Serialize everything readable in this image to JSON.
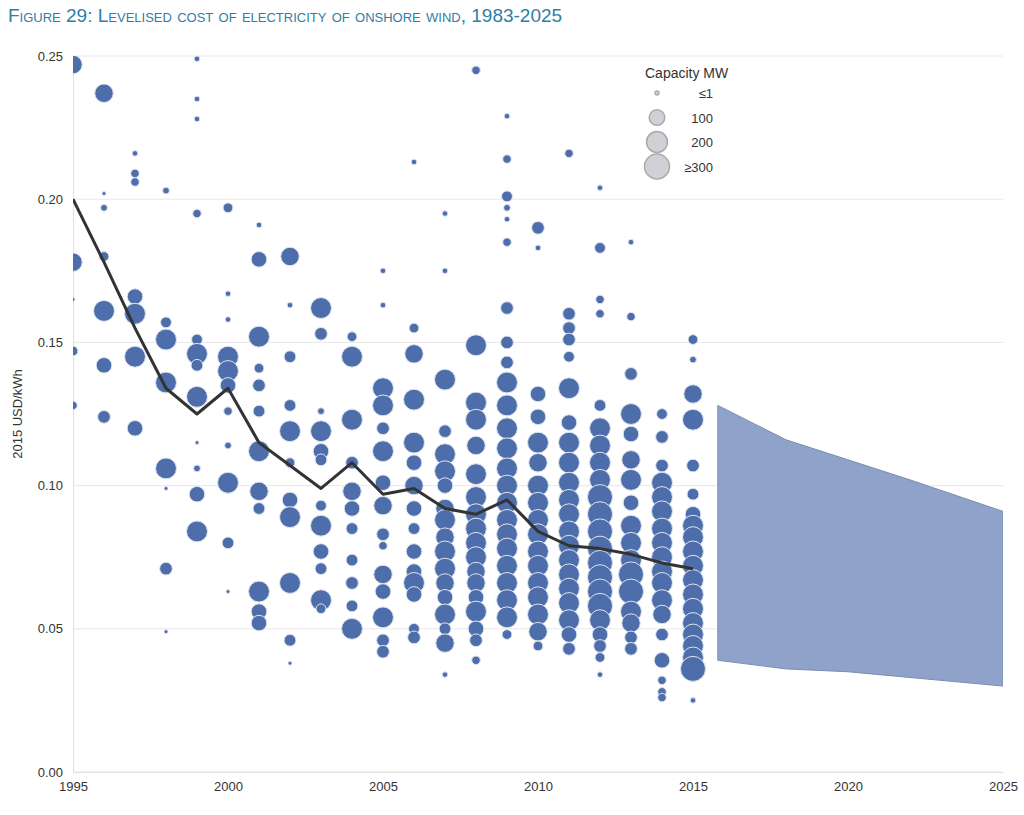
{
  "chart_data": {
    "type": "scatter",
    "title": "Figure 29: Levelised cost of electricity of onshore wind, 1983-2025",
    "y_label": "2015 USD/kWh",
    "xlim": [
      1995,
      2025
    ],
    "xticks": [
      1995,
      2000,
      2005,
      2010,
      2015,
      2020,
      2025
    ],
    "ylim": [
      0,
      0.25
    ],
    "yticks": [
      {
        "value": 0,
        "label": "0.00"
      },
      {
        "value": 0.05,
        "label": "0.05"
      },
      {
        "value": 0.1,
        "label": "0.10"
      },
      {
        "value": 0.15,
        "label": "0.15"
      },
      {
        "value": 0.2,
        "label": "0.20"
      },
      {
        "value": 0.25,
        "label": "0.25"
      }
    ],
    "grid": true,
    "legend": "top-right",
    "size_legend": {
      "title": "Capacity MW",
      "color": "#cfd1d6",
      "items": [
        {
          "value": 1,
          "label": "≤1"
        },
        {
          "value": 100,
          "label": "100"
        },
        {
          "value": 200,
          "label": "200"
        },
        {
          "value": 300,
          "label": "≥300"
        }
      ]
    },
    "series": [
      {
        "type": "scatter",
        "color": "#4e6eab",
        "marker": "circle",
        "x": [
          1995,
          1995,
          1995,
          1995,
          1995,
          1996,
          1996,
          1996,
          1996,
          1996,
          1996,
          1996,
          1997,
          1997,
          1997,
          1997,
          1997,
          1997,
          1997,
          1998,
          1998,
          1998,
          1998,
          1998,
          1998,
          1998,
          1998,
          1999,
          1999,
          1999,
          1999,
          1999,
          1999,
          1999,
          1999,
          1999,
          1999,
          1999,
          1999,
          2000,
          2000,
          2000,
          2000,
          2000,
          2000,
          2000,
          2000,
          2000,
          2000,
          2000,
          2001,
          2001,
          2001,
          2001,
          2001,
          2001,
          2001,
          2001,
          2001,
          2001,
          2001,
          2001,
          2002,
          2002,
          2002,
          2002,
          2002,
          2002,
          2002,
          2002,
          2002,
          2002,
          2002,
          2003,
          2003,
          2003,
          2003,
          2003,
          2003,
          2003,
          2003,
          2003,
          2003,
          2003,
          2003,
          2004,
          2004,
          2004,
          2004,
          2004,
          2004,
          2004,
          2004,
          2004,
          2004,
          2004,
          2005,
          2005,
          2005,
          2005,
          2005,
          2005,
          2005,
          2005,
          2005,
          2005,
          2005,
          2005,
          2005,
          2005,
          2005,
          2006,
          2006,
          2006,
          2006,
          2006,
          2006,
          2006,
          2006,
          2006,
          2006,
          2006,
          2006,
          2006,
          2006,
          2006,
          2007,
          2007,
          2007,
          2007,
          2007,
          2007,
          2007,
          2007,
          2007,
          2007,
          2007,
          2007,
          2007,
          2007,
          2007,
          2007,
          2007,
          2007,
          2008,
          2008,
          2008,
          2008,
          2008,
          2008,
          2008,
          2008,
          2008,
          2008,
          2008,
          2008,
          2008,
          2008,
          2008,
          2008,
          2008,
          2008,
          2009,
          2009,
          2009,
          2009,
          2009,
          2009,
          2009,
          2009,
          2009,
          2009,
          2009,
          2009,
          2009,
          2009,
          2009,
          2009,
          2009,
          2009,
          2009,
          2009,
          2009,
          2009,
          2009,
          2009,
          2010,
          2010,
          2010,
          2010,
          2010,
          2010,
          2010,
          2010,
          2010,
          2010,
          2010,
          2010,
          2010,
          2010,
          2010,
          2010,
          2010,
          2011,
          2011,
          2011,
          2011,
          2011,
          2011,
          2011,
          2011,
          2011,
          2011,
          2011,
          2011,
          2011,
          2011,
          2011,
          2011,
          2011,
          2011,
          2011,
          2011,
          2011,
          2012,
          2012,
          2012,
          2012,
          2012,
          2012,
          2012,
          2012,
          2012,
          2012,
          2012,
          2012,
          2012,
          2012,
          2012,
          2012,
          2012,
          2012,
          2012,
          2012,
          2012,
          2012,
          2013,
          2013,
          2013,
          2013,
          2013,
          2013,
          2013,
          2013,
          2013,
          2013,
          2013,
          2013,
          2013,
          2013,
          2013,
          2013,
          2013,
          2014,
          2014,
          2014,
          2014,
          2014,
          2014,
          2014,
          2014,
          2014,
          2014,
          2014,
          2014,
          2014,
          2014,
          2014,
          2014,
          2014,
          2014,
          2015,
          2015,
          2015,
          2015,
          2015,
          2015,
          2015,
          2015,
          2015,
          2015,
          2015,
          2015,
          2015,
          2015,
          2015,
          2015,
          2015,
          2015,
          2015,
          2015
        ],
        "values": [
          0.247,
          0.178,
          0.147,
          0.128,
          0.165,
          0.237,
          0.197,
          0.18,
          0.161,
          0.142,
          0.124,
          0.202,
          0.216,
          0.209,
          0.206,
          0.166,
          0.16,
          0.145,
          0.12,
          0.203,
          0.157,
          0.151,
          0.136,
          0.106,
          0.071,
          0.049,
          0.099,
          0.249,
          0.235,
          0.228,
          0.195,
          0.151,
          0.146,
          0.142,
          0.131,
          0.106,
          0.097,
          0.084,
          0.115,
          0.197,
          0.167,
          0.158,
          0.145,
          0.14,
          0.135,
          0.126,
          0.114,
          0.101,
          0.08,
          0.063,
          0.191,
          0.179,
          0.152,
          0.141,
          0.135,
          0.126,
          0.112,
          0.098,
          0.092,
          0.063,
          0.056,
          0.052,
          0.18,
          0.163,
          0.145,
          0.128,
          0.119,
          0.108,
          0.095,
          0.089,
          0.066,
          0.046,
          0.038,
          0.162,
          0.153,
          0.126,
          0.119,
          0.112,
          0.109,
          0.093,
          0.086,
          0.077,
          0.071,
          0.06,
          0.057,
          0.152,
          0.145,
          0.123,
          0.108,
          0.098,
          0.092,
          0.085,
          0.074,
          0.066,
          0.058,
          0.05,
          0.175,
          0.163,
          0.134,
          0.128,
          0.12,
          0.112,
          0.101,
          0.093,
          0.083,
          0.079,
          0.069,
          0.063,
          0.054,
          0.046,
          0.042,
          0.213,
          0.155,
          0.146,
          0.13,
          0.115,
          0.108,
          0.1,
          0.092,
          0.085,
          0.077,
          0.07,
          0.066,
          0.062,
          0.05,
          0.047,
          0.195,
          0.175,
          0.137,
          0.119,
          0.111,
          0.105,
          0.1,
          0.092,
          0.088,
          0.082,
          0.077,
          0.071,
          0.066,
          0.061,
          0.055,
          0.05,
          0.045,
          0.034,
          0.245,
          0.149,
          0.129,
          0.123,
          0.114,
          0.104,
          0.096,
          0.09,
          0.085,
          0.08,
          0.075,
          0.07,
          0.066,
          0.061,
          0.056,
          0.05,
          0.046,
          0.039,
          0.229,
          0.214,
          0.201,
          0.197,
          0.193,
          0.185,
          0.162,
          0.15,
          0.143,
          0.136,
          0.128,
          0.12,
          0.113,
          0.106,
          0.1,
          0.094,
          0.088,
          0.083,
          0.078,
          0.072,
          0.066,
          0.06,
          0.054,
          0.048,
          0.19,
          0.183,
          0.132,
          0.124,
          0.115,
          0.108,
          0.1,
          0.094,
          0.088,
          0.083,
          0.077,
          0.072,
          0.066,
          0.061,
          0.055,
          0.049,
          0.044,
          0.216,
          0.16,
          0.155,
          0.151,
          0.145,
          0.134,
          0.122,
          0.115,
          0.108,
          0.101,
          0.095,
          0.09,
          0.084,
          0.079,
          0.074,
          0.069,
          0.064,
          0.059,
          0.053,
          0.048,
          0.043,
          0.204,
          0.183,
          0.165,
          0.16,
          0.128,
          0.12,
          0.114,
          0.108,
          0.102,
          0.096,
          0.09,
          0.084,
          0.078,
          0.073,
          0.068,
          0.063,
          0.058,
          0.053,
          0.048,
          0.044,
          0.04,
          0.034,
          0.185,
          0.159,
          0.139,
          0.125,
          0.118,
          0.109,
          0.102,
          0.094,
          0.086,
          0.08,
          0.074,
          0.069,
          0.063,
          0.056,
          0.052,
          0.047,
          0.043,
          0.125,
          0.117,
          0.107,
          0.101,
          0.096,
          0.091,
          0.085,
          0.08,
          0.075,
          0.07,
          0.066,
          0.06,
          0.055,
          0.048,
          0.039,
          0.032,
          0.028,
          0.026,
          0.151,
          0.144,
          0.132,
          0.123,
          0.107,
          0.097,
          0.09,
          0.086,
          0.082,
          0.077,
          0.072,
          0.067,
          0.062,
          0.057,
          0.052,
          0.048,
          0.044,
          0.04,
          0.036,
          0.025
        ],
        "sizes": [
          150,
          150,
          30,
          20,
          1,
          150,
          10,
          30,
          200,
          100,
          60,
          1,
          5,
          20,
          20,
          100,
          200,
          200,
          100,
          10,
          40,
          200,
          200,
          200,
          60,
          1,
          1,
          5,
          5,
          5,
          20,
          40,
          200,
          50,
          200,
          10,
          100,
          200,
          1,
          30,
          5,
          5,
          200,
          200,
          100,
          20,
          10,
          200,
          50,
          1,
          5,
          100,
          200,
          30,
          60,
          50,
          200,
          150,
          50,
          200,
          100,
          100,
          150,
          5,
          50,
          50,
          200,
          30,
          100,
          200,
          200,
          50,
          1,
          200,
          60,
          10,
          200,
          100,
          50,
          40,
          200,
          100,
          50,
          200,
          30,
          30,
          200,
          200,
          60,
          150,
          100,
          50,
          50,
          60,
          50,
          200,
          5,
          5,
          200,
          200,
          60,
          200,
          100,
          150,
          60,
          20,
          150,
          100,
          200,
          60,
          60,
          5,
          30,
          150,
          200,
          200,
          100,
          150,
          100,
          50,
          100,
          100,
          200,
          100,
          40,
          60,
          5,
          5,
          200,
          60,
          200,
          200,
          100,
          150,
          200,
          150,
          200,
          200,
          150,
          100,
          200,
          50,
          150,
          5,
          20,
          200,
          200,
          200,
          150,
          200,
          200,
          200,
          200,
          200,
          200,
          150,
          150,
          100,
          200,
          100,
          60,
          20,
          5,
          20,
          40,
          10,
          5,
          20,
          60,
          60,
          60,
          200,
          200,
          200,
          200,
          200,
          200,
          200,
          200,
          200,
          200,
          200,
          200,
          200,
          200,
          30,
          60,
          5,
          100,
          100,
          200,
          150,
          200,
          200,
          200,
          200,
          200,
          200,
          200,
          200,
          200,
          150,
          30,
          20,
          60,
          60,
          60,
          40,
          200,
          100,
          200,
          200,
          200,
          200,
          200,
          200,
          200,
          200,
          200,
          200,
          200,
          200,
          100,
          60,
          5,
          40,
          20,
          20,
          50,
          200,
          200,
          200,
          200,
          300,
          300,
          300,
          300,
          300,
          300,
          300,
          300,
          200,
          100,
          60,
          30,
          5,
          5,
          20,
          60,
          200,
          100,
          150,
          200,
          100,
          200,
          200,
          200,
          300,
          300,
          200,
          150,
          60,
          60,
          40,
          60,
          60,
          200,
          200,
          200,
          200,
          200,
          200,
          200,
          200,
          200,
          150,
          60,
          100,
          20,
          20,
          20,
          30,
          10,
          150,
          200,
          60,
          50,
          100,
          200,
          200,
          200,
          200,
          200,
          200,
          200,
          200,
          200,
          200,
          200,
          300,
          5
        ]
      },
      {
        "type": "line",
        "color": "#333333",
        "line_style": "solid",
        "x": [
          1995,
          1996,
          1997,
          1998,
          1999,
          2000,
          2001,
          2002,
          2003,
          2004,
          2005,
          2006,
          2007,
          2008,
          2009,
          2010,
          2011,
          2012,
          2013,
          2014,
          2015
        ],
        "values": [
          0.2,
          0.178,
          0.155,
          0.134,
          0.125,
          0.134,
          0.115,
          0.107,
          0.099,
          0.108,
          0.097,
          0.099,
          0.092,
          0.09,
          0.095,
          0.084,
          0.079,
          0.078,
          0.076,
          0.073,
          0.071
        ]
      },
      {
        "type": "area",
        "color": "#8fa3ca",
        "x": [
          2015.8,
          2018,
          2020,
          2022,
          2025
        ],
        "lower": [
          0.039,
          0.036,
          0.035,
          0.033,
          0.03
        ],
        "upper": [
          0.128,
          0.116,
          0.109,
          0.102,
          0.091
        ]
      }
    ]
  }
}
